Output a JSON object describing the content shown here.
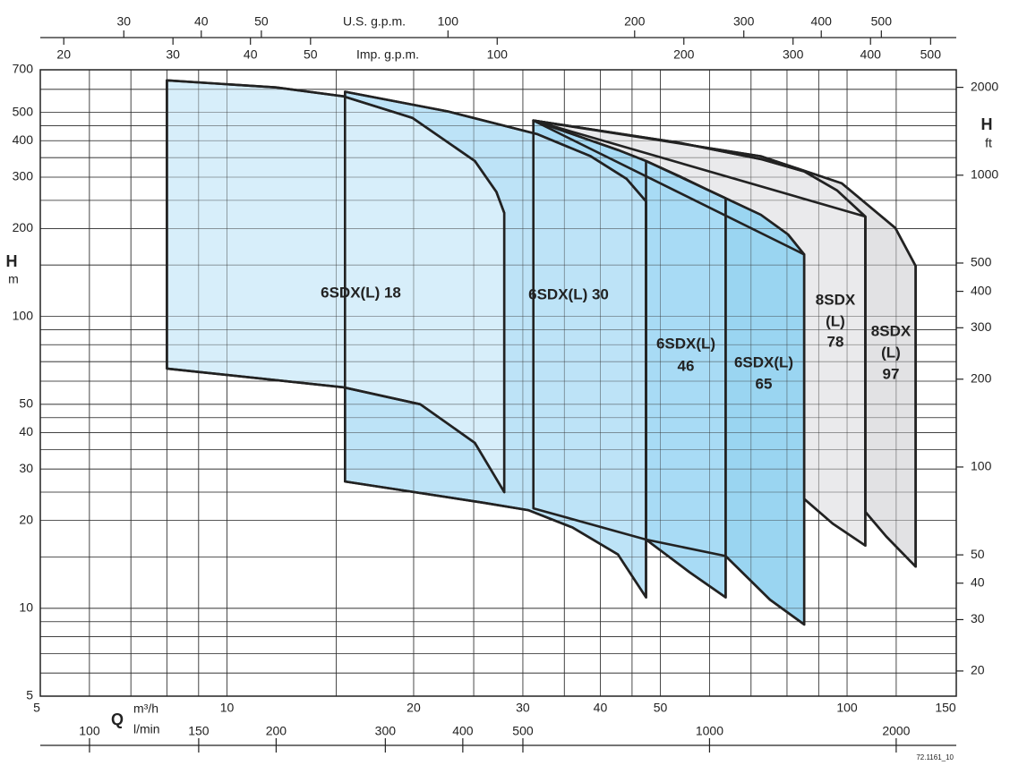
{
  "chart_data": {
    "type": "area",
    "log_x": true,
    "log_y": true,
    "grid": true,
    "x_unit_label": "m³/h",
    "x_axis_symbol": "Q",
    "y_unit_label": "m",
    "y_axis_symbol": "H",
    "xlim": [
      5,
      150
    ],
    "xticks": [
      5,
      10,
      20,
      30,
      40,
      50,
      100,
      150
    ],
    "xgrid": [
      6,
      7,
      8,
      9,
      15,
      25,
      35,
      45,
      60,
      70,
      80,
      90,
      120
    ],
    "ylim": [
      5,
      700
    ],
    "yticks": [
      5,
      10,
      20,
      30,
      40,
      50,
      100,
      200,
      300,
      400,
      500,
      700
    ],
    "ygrid": [
      6,
      7,
      8,
      9,
      15,
      25,
      35,
      45,
      60,
      70,
      80,
      90,
      150,
      250,
      350,
      450,
      600
    ],
    "us_gpm_label": "U.S. g.p.m.",
    "us_gpm_lim": [
      22.0,
      660.4
    ],
    "us_gpm_ticks": [
      30,
      40,
      50,
      100,
      200,
      300,
      400,
      500
    ],
    "imp_gpm_label": "Imp. g.p.m.",
    "imp_gpm_lim": [
      18.33,
      550
    ],
    "imp_gpm_ticks": [
      20,
      30,
      40,
      50,
      100,
      200,
      300,
      400,
      500
    ],
    "lmin_label": "l/min",
    "lmin_lim": [
      83.3,
      2500
    ],
    "lmin_ticks": [
      100,
      150,
      200,
      300,
      400,
      500,
      1000,
      2000
    ],
    "ft_label": "ft",
    "ft_symbol": "H",
    "ft_lim": [
      16.4,
      2297
    ],
    "ft_ticks": [
      20,
      30,
      40,
      50,
      100,
      200,
      300,
      400,
      500,
      1000,
      2000
    ],
    "footnote": "72.1161_10",
    "series": [
      {
        "label_lines": [
          "6SDX(L) 18"
        ],
        "color": "#d7eefa",
        "x": [
          8,
          12,
          15.4,
          19.9,
          25.1,
          27.2,
          28,
          28,
          25.1,
          20.5,
          15.4,
          8
        ],
        "values": [
          644,
          609,
          568,
          479,
          341,
          267,
          226,
          25,
          36.9,
          50,
          57.2,
          66.3
        ]
      },
      {
        "label_lines": [
          "6SDX(L) 30"
        ],
        "color": "#bde3f7",
        "x": [
          15.5,
          22.7,
          31.6,
          38.6,
          44.1,
          47.4,
          47.4,
          42.7,
          36.1,
          30.6,
          25.9,
          15.5
        ],
        "values": [
          589,
          504,
          422,
          354,
          296,
          248,
          10.9,
          15.3,
          18.9,
          21.7,
          23,
          27.2
        ]
      },
      {
        "label_lines": [
          "6SDX(L)",
          "46"
        ],
        "color": "#a8dbf5",
        "x": [
          31.2,
          42.7,
          47.4,
          53.9,
          59.5,
          63.7,
          63.7,
          55.7,
          47.4,
          31.2
        ],
        "values": [
          469,
          372,
          341,
          301,
          272,
          254,
          10.9,
          13.3,
          17.2,
          22
        ]
      },
      {
        "label_lines": [
          "6SDX(L)",
          "65"
        ],
        "color": "#9ad5f1",
        "x": [
          47.4,
          63.7,
          72.6,
          80.3,
          85.3,
          85.3,
          75.1,
          63.7,
          47.4
        ],
        "values": [
          341,
          254,
          223,
          191,
          163,
          8.8,
          10.7,
          15.1,
          17.2
        ]
      },
      {
        "label_lines": [
          "8SDX",
          "(L)",
          "78"
        ],
        "color": "#eaeaec",
        "x": [
          31.2,
          53.9,
          72.6,
          85.3,
          96.4,
          107,
          107,
          94.8,
          85.3,
          85.3
        ],
        "values": [
          469,
          393,
          346,
          314,
          270,
          220,
          16.4,
          19.5,
          23.7,
          163
        ]
      },
      {
        "label_lines": [
          "8SDX",
          "(L)",
          "97"
        ],
        "color": "#e2e2e4",
        "x": [
          31.2,
          72.6,
          98,
          119.6,
          129,
          129,
          115.7,
          107,
          107
        ],
        "values": [
          469,
          354,
          286,
          201,
          149,
          13.9,
          17.6,
          21.4,
          220
        ]
      }
    ]
  }
}
